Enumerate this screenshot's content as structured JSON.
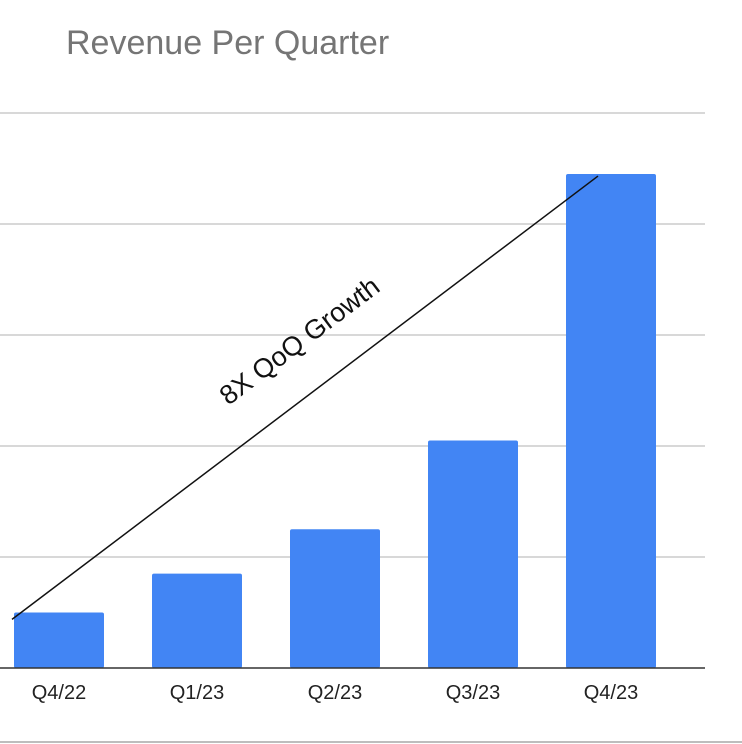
{
  "chart_data": {
    "type": "bar",
    "title": "Revenue Per Quarter",
    "xlabel": "",
    "ylabel": "",
    "categories": [
      "Q4/22",
      "Q1/23",
      "Q2/23",
      "Q3/23",
      "Q4/23"
    ],
    "values": [
      1.0,
      1.7,
      2.5,
      4.1,
      8.9
    ],
    "ylim": [
      0,
      10
    ],
    "grid": true,
    "legend": "none",
    "bar_color": "#4285F4",
    "annotation": {
      "text": "8X QoQ Growth",
      "from": {
        "category": "Q4/22",
        "value": 1.2
      },
      "to": {
        "category": "Q4/23",
        "value": 8.9
      }
    }
  }
}
